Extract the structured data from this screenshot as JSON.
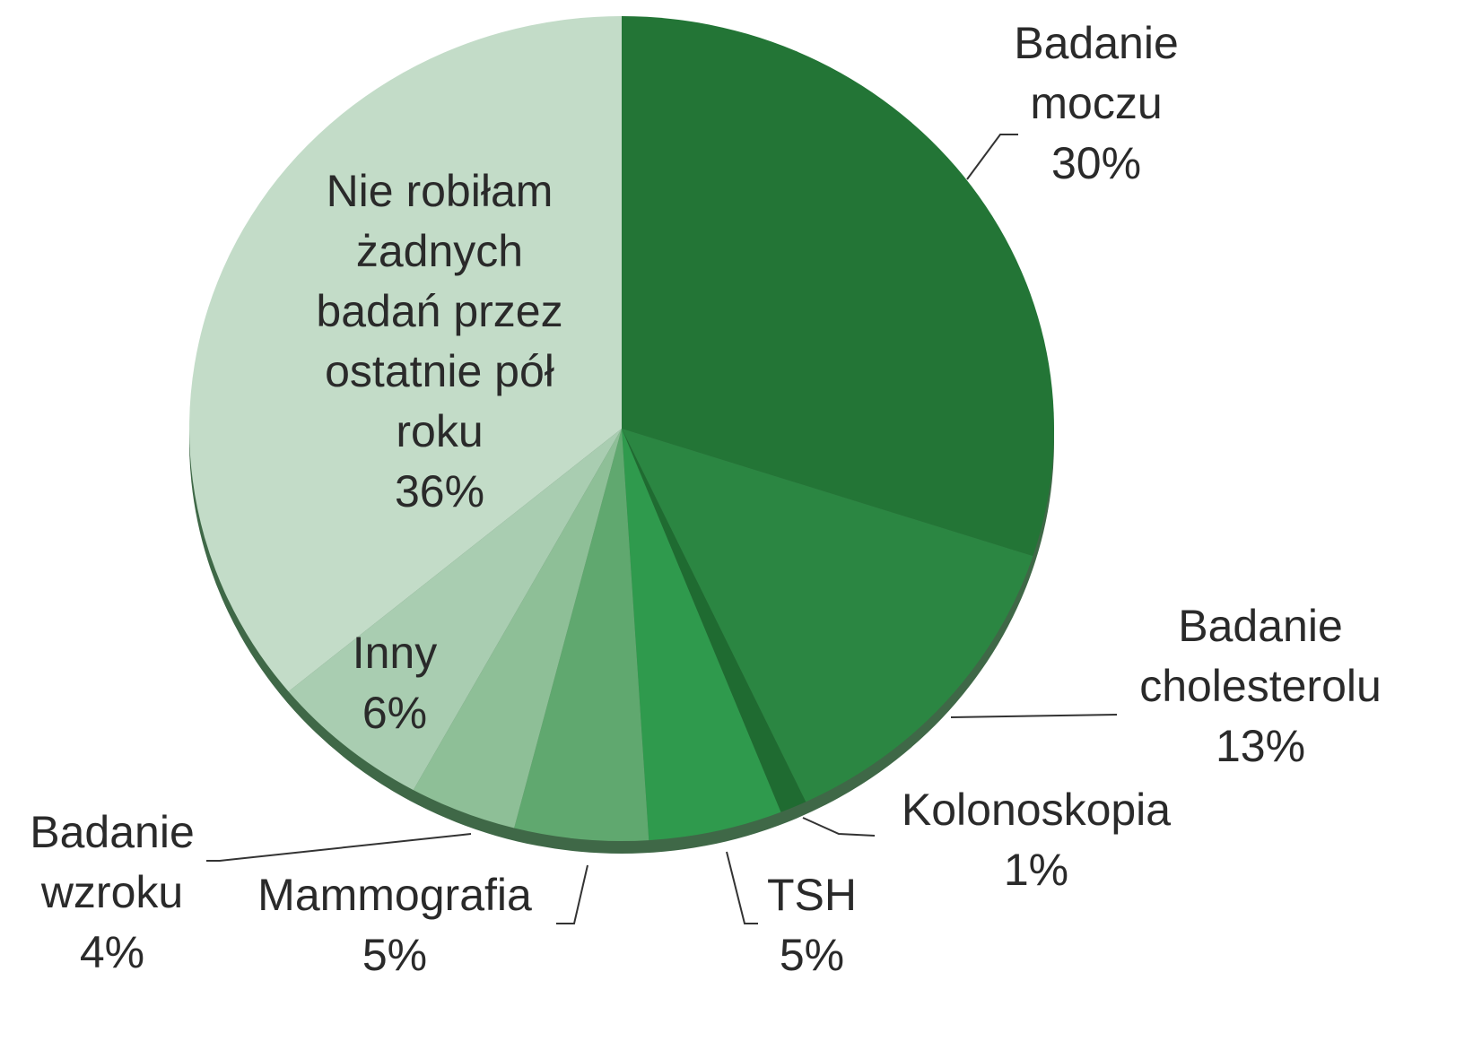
{
  "chart_data": {
    "type": "pie",
    "categories": [
      "Badanie\nmoczu",
      "Badanie\ncholesterolu",
      "Kolonoskopia",
      "TSH",
      "Mammografia",
      "Badanie\nwzroku",
      "Inny",
      "Nie robiłam\nżadnych\nbadań przez\nostatnie pół\nroku"
    ],
    "values": [
      30,
      13,
      1,
      5,
      5,
      4,
      6,
      36
    ],
    "value_labels": [
      "30%",
      "13%",
      "1%",
      "5%",
      "5%",
      "4%",
      "6%",
      "36%"
    ],
    "colors": [
      "#237536",
      "#2b8642",
      "#1f6b31",
      "#2f9a4d",
      "#60a86f",
      "#8ebf97",
      "#a9cdb1",
      "#c3dcc8"
    ]
  }
}
